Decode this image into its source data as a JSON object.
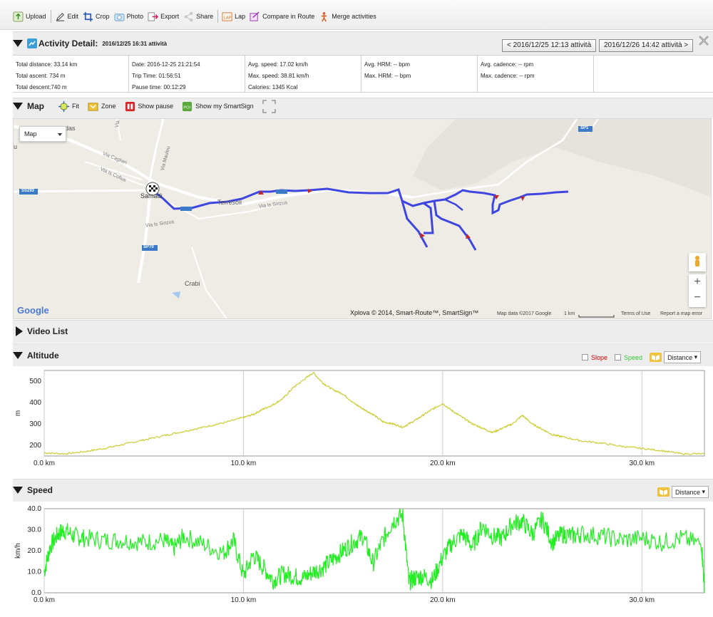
{
  "toolbar": {
    "items": [
      {
        "label": "Upload",
        "icon": "upload-icon"
      },
      {
        "label": "Edit",
        "icon": "edit-icon"
      },
      {
        "label": "Crop",
        "icon": "crop-icon"
      },
      {
        "label": "Photo",
        "icon": "photo-icon"
      },
      {
        "label": "Export",
        "icon": "export-icon"
      },
      {
        "label": "Share",
        "icon": "share-icon"
      },
      {
        "label": "Lap",
        "icon": "lap-icon"
      },
      {
        "label": "Compare in Route",
        "icon": "compare-icon"
      },
      {
        "label": "Merge activities",
        "icon": "merge-icon"
      }
    ]
  },
  "activity": {
    "title": "Activity Detail:",
    "subtitle": "2016/12/25 16:31 attività",
    "prev_label": "< 2016/12/25 12:13 attività",
    "next_label": "2016/12/26 14:42 attività >",
    "stats": [
      [
        "Total distance: 33.14 km",
        "Total ascent: 734 m",
        "Total descent:740 m"
      ],
      [
        "Date: 2016-12-25 21:21:54",
        "Trip Time: 01:56:51",
        "Pause time: 00:12:29"
      ],
      [
        "Avg. speed: 17.02 km/h",
        "Max. speed: 38.81 km/h",
        "Calories: 1345 Kcal"
      ],
      [
        "Avg. HRM: -- bpm",
        "Max. HRM: -- bpm",
        ""
      ],
      [
        "Avg. cadence: -- rpm",
        "Max. cadence: -- rpm",
        ""
      ],
      [
        "",
        "",
        ""
      ]
    ]
  },
  "map_section": {
    "title": "Map",
    "tools": [
      "Fit",
      "Zone",
      "Show pause",
      "Show my SmartSign"
    ],
    "map_type": "Map",
    "place_labels": [
      "das",
      "u",
      "Via Cagliari",
      "Via Mauleu",
      "Via Is Cofius",
      "Via Is",
      "SS293",
      "Samadi",
      "Terresoli",
      "Via Is Sinzus",
      "Via Is Sinzus",
      "SP70",
      "Crabi",
      "SP1"
    ],
    "attribution": "Xplova © 2014, Smart-Route™, SmartSign™",
    "map_data": "Map data ©2017 Google",
    "scale": "1 km",
    "terms": "Terms of Use",
    "report": "Report a map error",
    "google": "Google",
    "zoom_in": "+",
    "zoom_out": "−"
  },
  "video": {
    "title": "Video List"
  },
  "altitude": {
    "title": "Altitude",
    "slope_label": "Slope",
    "speed_label": "Speed",
    "axis_mode": "Distance",
    "colors": {
      "line": "#cccc33",
      "slope": "#cc0000",
      "speed": "#33cc33"
    }
  },
  "speed": {
    "title": "Speed",
    "axis_mode": "Distance",
    "colors": {
      "line": "#22ee22"
    }
  },
  "chart_data": [
    {
      "type": "line",
      "name": "altitude",
      "ylabel": "m",
      "xlabel": "",
      "x_unit": "km",
      "xlim": [
        0,
        33.14
      ],
      "ylim": [
        150,
        550
      ],
      "yticks": [
        200,
        300,
        400,
        500
      ],
      "ytick_labels": [
        "200",
        "300",
        "400",
        "500"
      ],
      "xticks": [
        0,
        10,
        20,
        30
      ],
      "xtick_labels": [
        "0.0 km",
        "10.0 km",
        "20.0 km",
        "30.0 km"
      ],
      "grid": "vertical",
      "series": [
        {
          "x": [
            0,
            1,
            2,
            3,
            4,
            5,
            6,
            7,
            8,
            9,
            10,
            10.5,
            11,
            11.5,
            12,
            12.5,
            13,
            13.5,
            14,
            14.5,
            15,
            15.5,
            16,
            16.5,
            17,
            17.5,
            18,
            18.5,
            19,
            19.5,
            20,
            20.5,
            21,
            21.5,
            22,
            22.5,
            23,
            23.5,
            24,
            24.5,
            25,
            25.5,
            26,
            27,
            28,
            29,
            30,
            31,
            32,
            33.14
          ],
          "y": [
            165,
            160,
            170,
            185,
            205,
            225,
            245,
            265,
            285,
            305,
            330,
            345,
            370,
            390,
            420,
            470,
            505,
            540,
            490,
            460,
            440,
            400,
            370,
            345,
            310,
            300,
            285,
            310,
            340,
            370,
            395,
            360,
            330,
            300,
            280,
            260,
            280,
            300,
            340,
            300,
            275,
            250,
            240,
            220,
            210,
            195,
            185,
            175,
            160,
            160
          ]
        }
      ]
    },
    {
      "type": "line",
      "name": "speed",
      "ylabel": "km/h",
      "xlabel": "",
      "x_unit": "km",
      "xlim": [
        0,
        33.14
      ],
      "ylim": [
        0,
        40
      ],
      "yticks": [
        0,
        10,
        20,
        30,
        40
      ],
      "ytick_labels": [
        "0.0",
        "10.0",
        "20.0",
        "30.0",
        "40.0"
      ],
      "xticks": [
        0,
        10,
        20,
        30
      ],
      "xtick_labels": [
        "0.0 km",
        "10.0 km",
        "20.0 km",
        "30.0 km"
      ],
      "grid": "vertical",
      "series": [
        {
          "x": [
            0,
            0.3,
            0.7,
            1,
            1.5,
            2,
            3,
            4,
            5,
            6,
            6.5,
            7,
            8,
            9,
            9.5,
            10,
            10.5,
            11,
            11.5,
            12,
            12.5,
            13,
            13.5,
            14,
            14.5,
            15,
            15.5,
            16,
            16.5,
            17,
            17.5,
            18,
            18.3,
            18.6,
            19,
            19.5,
            20,
            20.5,
            21,
            21.5,
            22,
            22.5,
            23,
            23.5,
            24,
            24.5,
            25,
            25.5,
            26,
            26.5,
            27,
            28,
            29,
            30,
            31,
            32,
            33,
            33.14
          ],
          "y": [
            10,
            22,
            28,
            30,
            27,
            26,
            25,
            25,
            24,
            25,
            21,
            27,
            23,
            19,
            25,
            8,
            18,
            12,
            6,
            9,
            8,
            7,
            10,
            12,
            16,
            20,
            24,
            27,
            14,
            25,
            34,
            37,
            5,
            7,
            8,
            6,
            17,
            24,
            28,
            22,
            32,
            27,
            26,
            33,
            34,
            28,
            35,
            24,
            28,
            27,
            28,
            27,
            25,
            26,
            24,
            26,
            23,
            2
          ]
        }
      ]
    }
  ]
}
